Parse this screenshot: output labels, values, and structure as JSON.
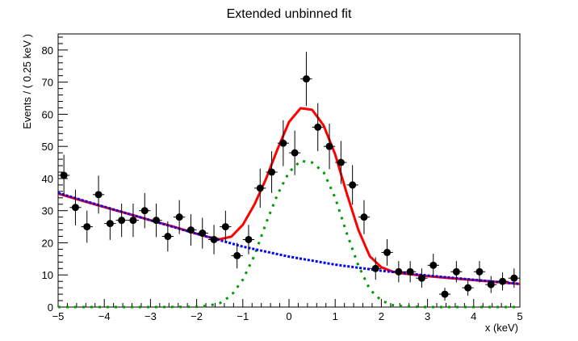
{
  "chart_data": {
    "type": "scatter",
    "title": "Extended unbinned fit",
    "xlabel": "x (keV)",
    "ylabel": "Events / ( 0.25 keV )",
    "xlim": [
      -5,
      5
    ],
    "ylim": [
      0,
      85
    ],
    "x_ticks": [
      -5,
      -4,
      -3,
      -2,
      -1,
      0,
      1,
      2,
      3,
      4,
      5
    ],
    "y_ticks": [
      0,
      10,
      20,
      30,
      40,
      50,
      60,
      70,
      80
    ],
    "grid": false,
    "legend": "none",
    "series": [
      {
        "kind": "data_points",
        "color": "#000000",
        "x_err": 0.125,
        "x": [
          -4.875,
          -4.625,
          -4.375,
          -4.125,
          -3.875,
          -3.625,
          -3.375,
          -3.125,
          -2.875,
          -2.625,
          -2.375,
          -2.125,
          -1.875,
          -1.625,
          -1.375,
          -1.125,
          -0.875,
          -0.625,
          -0.375,
          -0.125,
          0.125,
          0.375,
          0.625,
          0.875,
          1.125,
          1.375,
          1.625,
          1.875,
          2.125,
          2.375,
          2.625,
          2.875,
          3.125,
          3.375,
          3.625,
          3.875,
          4.125,
          4.375,
          4.625,
          4.875
        ],
        "y": [
          41,
          31,
          25,
          35,
          26,
          27,
          27,
          30,
          27,
          22,
          28,
          24,
          23,
          21,
          25,
          16,
          21,
          37,
          42,
          51,
          48,
          71,
          56,
          50,
          45,
          38,
          28,
          12,
          17,
          11,
          11,
          9,
          13,
          4,
          11,
          6,
          11,
          7,
          8,
          9
        ]
      },
      {
        "kind": "total_fit",
        "color": "#ff0000",
        "style": "solid",
        "x": [
          -5,
          -4.5,
          -4,
          -3.5,
          -3,
          -2.5,
          -2,
          -1.75,
          -1.5,
          -1.25,
          -1,
          -0.75,
          -0.5,
          -0.25,
          0,
          0.25,
          0.5,
          0.75,
          1,
          1.25,
          1.5,
          1.75,
          2,
          2.25,
          2.5,
          3,
          3.5,
          4,
          4.5,
          5
        ],
        "y": [
          35.3,
          33.2,
          31.1,
          29.1,
          27.0,
          25.0,
          22.8,
          21.8,
          21.1,
          21.9,
          25.6,
          31.9,
          39.8,
          49.1,
          57.6,
          61.9,
          61.4,
          56.5,
          47.5,
          35.4,
          24.1,
          15.8,
          12.4,
          11.0,
          10.4,
          9.6,
          9.0,
          8.4,
          7.8,
          7.2
        ]
      },
      {
        "kind": "background_component",
        "color": "#0000ff",
        "style": "dotted",
        "x": [
          -5,
          -4,
          -3,
          -2,
          -1,
          0,
          1,
          2,
          3,
          4,
          5
        ],
        "y": [
          35.5,
          31.2,
          27.0,
          22.8,
          18.8,
          15.7,
          13.2,
          11.3,
          9.8,
          8.5,
          7.2
        ]
      },
      {
        "kind": "signal_component",
        "color": "#009900",
        "style": "dotted",
        "x": [
          -5,
          -3,
          -2,
          -1.75,
          -1.5,
          -1.25,
          -1,
          -0.75,
          -0.5,
          -0.25,
          0,
          0.25,
          0.5,
          0.75,
          1,
          1.25,
          1.5,
          1.75,
          2,
          2.25,
          2.5,
          3,
          5
        ],
        "y": [
          0,
          0,
          0.1,
          0.4,
          1.2,
          3.6,
          8.5,
          16.0,
          26.0,
          35.0,
          42.0,
          45.5,
          45.0,
          42.0,
          34.0,
          23.0,
          13.0,
          5.5,
          2.0,
          0.6,
          0.2,
          0,
          0
        ]
      }
    ]
  }
}
